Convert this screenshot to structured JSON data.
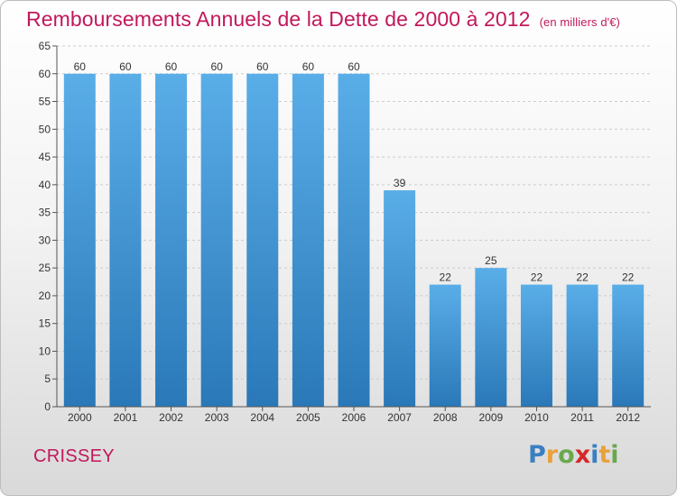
{
  "header": {
    "title": "Remboursements Annuels de la Dette de 2000 à 2012",
    "subtitle": "(en milliers d'€)"
  },
  "footer": {
    "location": "CRISSEY",
    "brand": "Proxiti",
    "brand_letters": [
      {
        "char": "P",
        "color": "#3a7fc1"
      },
      {
        "char": "r",
        "color": "#e8a23a"
      },
      {
        "char": "o",
        "color": "#6aa84f"
      },
      {
        "char": "x",
        "color": "#d62728"
      },
      {
        "char": "i",
        "color": "#3a7fc1"
      },
      {
        "char": "t",
        "color": "#e8a23a"
      },
      {
        "char": "i",
        "color": "#6aa84f"
      }
    ]
  },
  "colors": {
    "title": "#c2185b",
    "bar_top": "#5aaee8",
    "bar_bottom": "#2a78b8",
    "grid": "#cccccc",
    "axis_text": "#333333"
  },
  "chart_data": {
    "type": "bar",
    "categories": [
      "2000",
      "2001",
      "2002",
      "2003",
      "2004",
      "2005",
      "2006",
      "2007",
      "2008",
      "2009",
      "2010",
      "2011",
      "2012"
    ],
    "values": [
      60,
      60,
      60,
      60,
      60,
      60,
      60,
      39,
      22,
      25,
      22,
      22,
      22
    ],
    "data_labels": [
      "60",
      "60",
      "60",
      "60",
      "60",
      "60",
      "60",
      "39",
      "22",
      "25",
      "22",
      "22",
      "22"
    ],
    "title": "Remboursements Annuels de la Dette de 2000 à 2012",
    "subtitle": "(en milliers d'€)",
    "xlabel": "",
    "ylabel": "",
    "ylim": [
      0,
      65
    ],
    "yticks": [
      0,
      5,
      10,
      15,
      20,
      25,
      30,
      35,
      40,
      45,
      50,
      55,
      60,
      65
    ],
    "grid": true,
    "legend": "none"
  }
}
